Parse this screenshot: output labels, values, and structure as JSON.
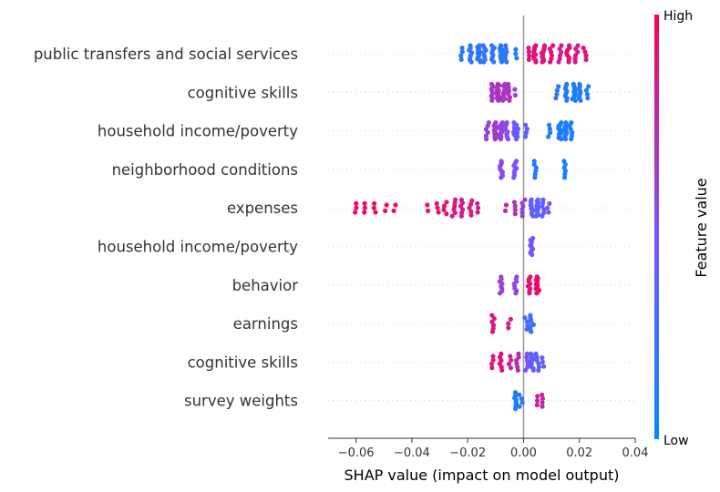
{
  "chart_data": {
    "type": "scatter",
    "subtype": "shap-beeswarm",
    "title": "",
    "xlabel": "SHAP value (impact on model output)",
    "ylabel": "",
    "xlim": [
      -0.07,
      0.04
    ],
    "xticks": [
      -0.06,
      -0.04,
      -0.02,
      0.0,
      0.02,
      0.04
    ],
    "xtick_labels": [
      "−0.06",
      "−0.04",
      "−0.02",
      "0.00",
      "0.02",
      "0.04"
    ],
    "grid": false,
    "colorbar": {
      "title": "Feature value",
      "high_label": "High",
      "low_label": "Low",
      "low_color": "#008bfb",
      "high_color": "#ff0052",
      "mid_color": "#7c52ff"
    },
    "features": [
      {
        "name": "public transfers and social services",
        "points": [
          {
            "x": -0.022,
            "v": 0.15,
            "n": 4
          },
          {
            "x": -0.019,
            "v": 0.2,
            "n": 8
          },
          {
            "x": -0.016,
            "v": 0.15,
            "n": 12
          },
          {
            "x": -0.014,
            "v": 0.25,
            "n": 8
          },
          {
            "x": -0.011,
            "v": 0.2,
            "n": 8
          },
          {
            "x": -0.008,
            "v": 0.15,
            "n": 12
          },
          {
            "x": -0.006,
            "v": 0.2,
            "n": 6
          },
          {
            "x": -0.003,
            "v": 0.1,
            "n": 3
          },
          {
            "x": 0.002,
            "v": 0.85,
            "n": 4
          },
          {
            "x": 0.004,
            "v": 0.9,
            "n": 10
          },
          {
            "x": 0.007,
            "v": 0.85,
            "n": 14
          },
          {
            "x": 0.01,
            "v": 0.9,
            "n": 6
          },
          {
            "x": 0.013,
            "v": 0.8,
            "n": 6
          },
          {
            "x": 0.016,
            "v": 0.9,
            "n": 8
          },
          {
            "x": 0.019,
            "v": 0.85,
            "n": 6
          },
          {
            "x": 0.022,
            "v": 0.9,
            "n": 4
          }
        ]
      },
      {
        "name": "cognitive skills",
        "points": [
          {
            "x": -0.011,
            "v": 0.65,
            "n": 8
          },
          {
            "x": -0.009,
            "v": 0.7,
            "n": 14
          },
          {
            "x": -0.007,
            "v": 0.65,
            "n": 10
          },
          {
            "x": -0.005,
            "v": 0.7,
            "n": 6
          },
          {
            "x": -0.003,
            "v": 0.6,
            "n": 2
          },
          {
            "x": 0.012,
            "v": 0.2,
            "n": 4
          },
          {
            "x": 0.015,
            "v": 0.15,
            "n": 8
          },
          {
            "x": 0.018,
            "v": 0.1,
            "n": 12
          },
          {
            "x": 0.02,
            "v": 0.15,
            "n": 8
          },
          {
            "x": 0.023,
            "v": 0.1,
            "n": 4
          }
        ]
      },
      {
        "name": "household income/poverty",
        "points": [
          {
            "x": -0.013,
            "v": 0.6,
            "n": 6
          },
          {
            "x": -0.01,
            "v": 0.65,
            "n": 12
          },
          {
            "x": -0.008,
            "v": 0.6,
            "n": 14
          },
          {
            "x": -0.006,
            "v": 0.55,
            "n": 8
          },
          {
            "x": -0.003,
            "v": 0.45,
            "n": 8
          },
          {
            "x": -0.002,
            "v": 0.4,
            "n": 4
          },
          {
            "x": 0.001,
            "v": 0.35,
            "n": 4
          },
          {
            "x": 0.009,
            "v": 0.15,
            "n": 4
          },
          {
            "x": 0.013,
            "v": 0.1,
            "n": 14
          },
          {
            "x": 0.015,
            "v": 0.15,
            "n": 12
          },
          {
            "x": 0.017,
            "v": 0.1,
            "n": 6
          }
        ]
      },
      {
        "name": "neighborhood conditions",
        "points": [
          {
            "x": -0.008,
            "v": 0.55,
            "n": 10
          },
          {
            "x": -0.003,
            "v": 0.5,
            "n": 8
          },
          {
            "x": 0.004,
            "v": 0.15,
            "n": 6
          },
          {
            "x": 0.015,
            "v": 0.1,
            "n": 6
          }
        ]
      },
      {
        "name": "expenses",
        "points": [
          {
            "x": -0.06,
            "v": 0.95,
            "n": 3
          },
          {
            "x": -0.057,
            "v": 0.95,
            "n": 3
          },
          {
            "x": -0.053,
            "v": 0.95,
            "n": 3
          },
          {
            "x": -0.049,
            "v": 0.95,
            "n": 2
          },
          {
            "x": -0.046,
            "v": 0.95,
            "n": 2
          },
          {
            "x": -0.034,
            "v": 0.9,
            "n": 2
          },
          {
            "x": -0.031,
            "v": 0.9,
            "n": 3
          },
          {
            "x": -0.028,
            "v": 0.9,
            "n": 4
          },
          {
            "x": -0.025,
            "v": 0.85,
            "n": 6
          },
          {
            "x": -0.022,
            "v": 0.85,
            "n": 6
          },
          {
            "x": -0.019,
            "v": 0.85,
            "n": 5
          },
          {
            "x": -0.016,
            "v": 0.8,
            "n": 3
          },
          {
            "x": -0.006,
            "v": 0.75,
            "n": 2
          },
          {
            "x": -0.003,
            "v": 0.7,
            "n": 4
          },
          {
            "x": 0.0,
            "v": 0.6,
            "n": 6
          },
          {
            "x": 0.003,
            "v": 0.4,
            "n": 10
          },
          {
            "x": 0.005,
            "v": 0.35,
            "n": 12
          },
          {
            "x": 0.007,
            "v": 0.4,
            "n": 6
          },
          {
            "x": 0.009,
            "v": 0.5,
            "n": 3
          }
        ]
      },
      {
        "name": "household income/poverty",
        "points": [
          {
            "x": 0.003,
            "v": 0.45,
            "n": 10
          }
        ]
      },
      {
        "name": "behavior",
        "points": [
          {
            "x": -0.008,
            "v": 0.6,
            "n": 8
          },
          {
            "x": -0.003,
            "v": 0.55,
            "n": 8
          },
          {
            "x": 0.002,
            "v": 0.9,
            "n": 8
          },
          {
            "x": 0.005,
            "v": 0.95,
            "n": 12
          }
        ]
      },
      {
        "name": "earnings",
        "points": [
          {
            "x": -0.011,
            "v": 0.85,
            "n": 6
          },
          {
            "x": -0.005,
            "v": 0.85,
            "n": 3
          },
          {
            "x": 0.001,
            "v": 0.3,
            "n": 4
          },
          {
            "x": 0.003,
            "v": 0.25,
            "n": 8
          }
        ]
      },
      {
        "name": "cognitive skills",
        "points": [
          {
            "x": -0.011,
            "v": 0.85,
            "n": 4
          },
          {
            "x": -0.008,
            "v": 0.9,
            "n": 6
          },
          {
            "x": -0.005,
            "v": 0.8,
            "n": 4
          },
          {
            "x": -0.002,
            "v": 0.75,
            "n": 6
          },
          {
            "x": 0.001,
            "v": 0.5,
            "n": 6
          },
          {
            "x": 0.003,
            "v": 0.4,
            "n": 10
          },
          {
            "x": 0.005,
            "v": 0.35,
            "n": 6
          },
          {
            "x": 0.007,
            "v": 0.45,
            "n": 3
          }
        ]
      },
      {
        "name": "survey weights",
        "points": [
          {
            "x": -0.003,
            "v": 0.1,
            "n": 10
          },
          {
            "x": -0.001,
            "v": 0.2,
            "n": 4
          },
          {
            "x": 0.005,
            "v": 0.8,
            "n": 3
          },
          {
            "x": 0.007,
            "v": 0.75,
            "n": 4
          }
        ]
      }
    ]
  }
}
